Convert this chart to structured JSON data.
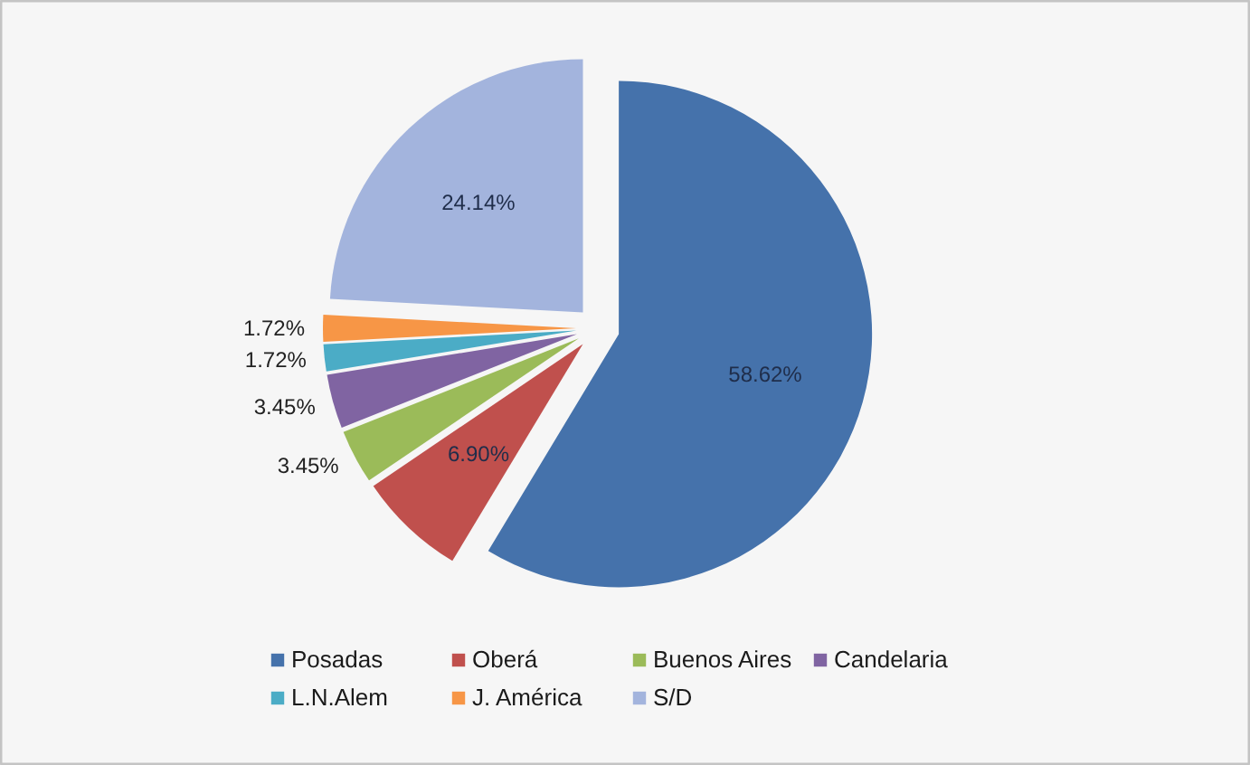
{
  "chart_data": {
    "type": "pie",
    "categories": [
      "Posadas",
      "Oberá",
      "Buenos Aires",
      "Candelaria",
      "L.N.Alem",
      "J. América",
      "S/D"
    ],
    "values": [
      58.62,
      6.9,
      3.45,
      3.45,
      1.72,
      1.72,
      24.14
    ],
    "colors": [
      "#4572ab",
      "#c0504d",
      "#9bbb59",
      "#8064a2",
      "#4bacc6",
      "#f79646",
      "#a3b4dd"
    ],
    "value_labels": [
      "58.62%",
      "6.90%",
      "3.45%",
      "3.45%",
      "1.72%",
      "1.72%",
      "24.14%"
    ],
    "legend": "bottom"
  }
}
